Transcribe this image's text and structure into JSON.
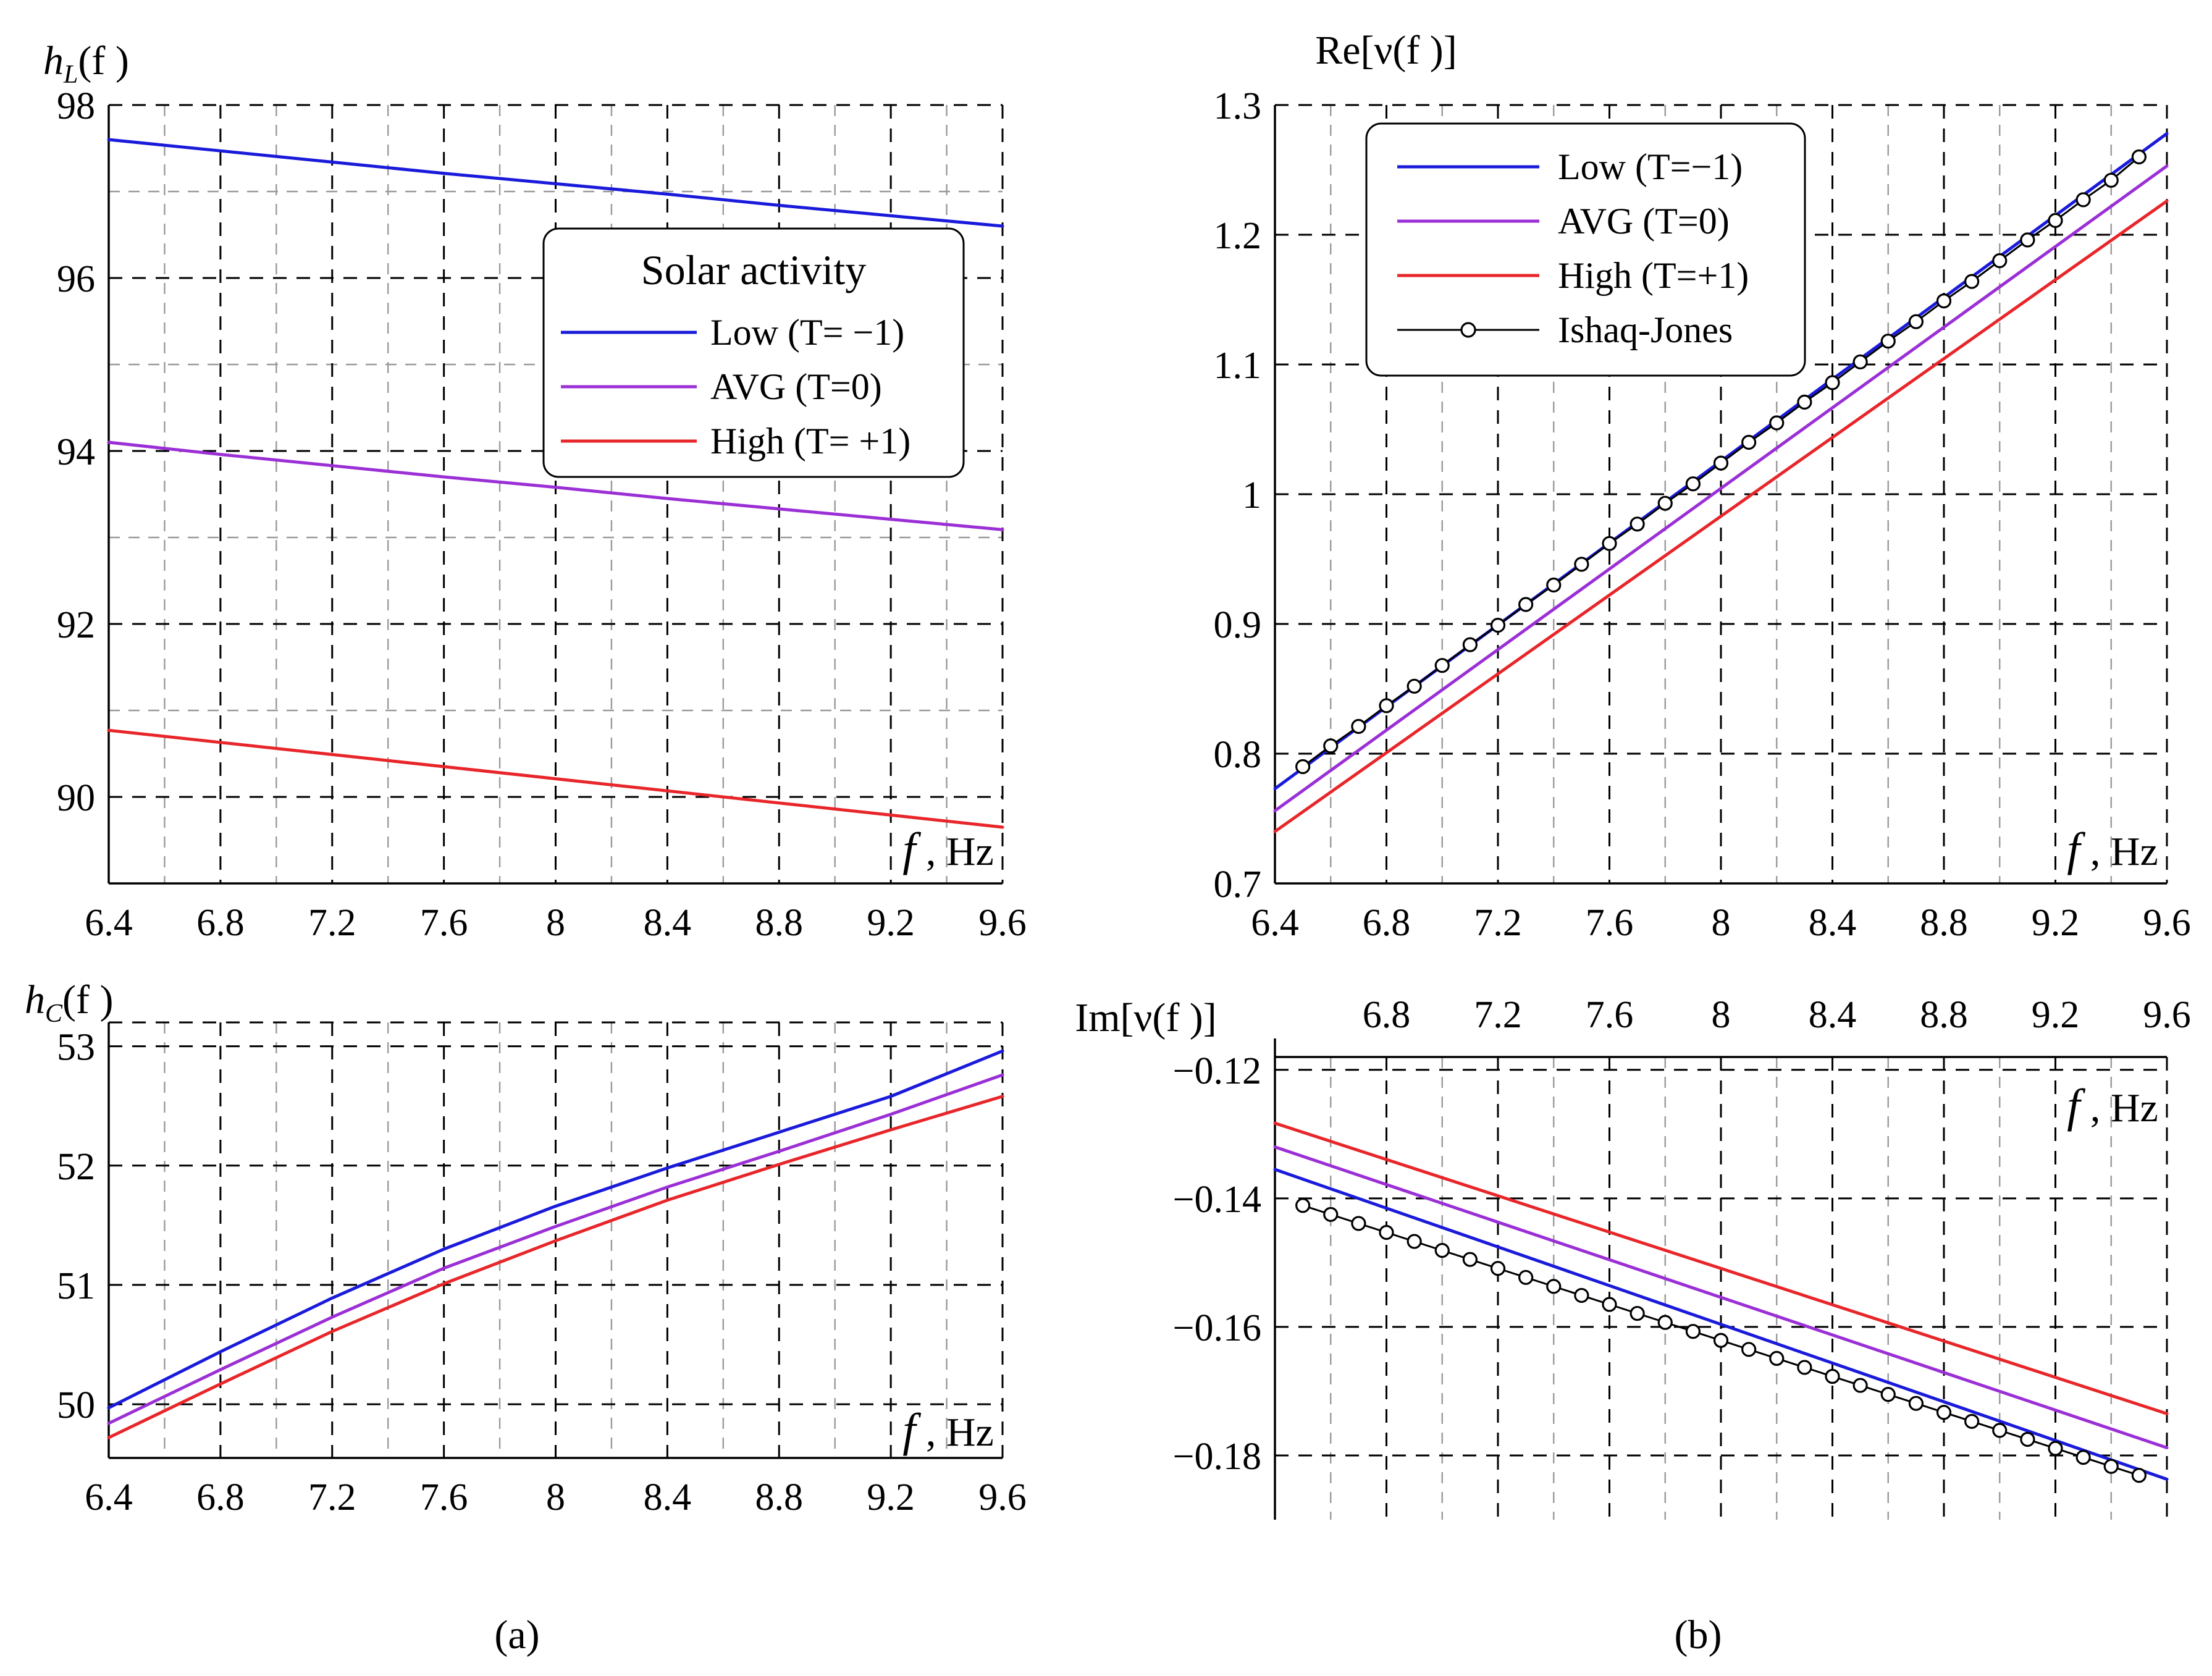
{
  "colors": {
    "low": "#1a1adb",
    "avg": "#9b2fd6",
    "high": "#e8262a",
    "ishaq": "#000000"
  },
  "captions": {
    "a": "(a)",
    "b": "(b)"
  },
  "chart_data": [
    {
      "id": "hL",
      "type": "line",
      "title": "",
      "ylabel": {
        "main": "h",
        "sub": "L",
        "rest": "(f )"
      },
      "xlabel": {
        "f": "f",
        "unit": " , Hz"
      },
      "xlim": [
        6.4,
        9.6
      ],
      "ylim": [
        89,
        98
      ],
      "xticks": [
        6.4,
        6.8,
        7.2,
        7.6,
        8,
        8.4,
        8.8,
        9.2,
        9.6
      ],
      "xtick_labels": [
        "6.4",
        "6.8",
        "7.2",
        "7.6",
        "8",
        "8.4",
        "8.8",
        "9.2",
        "9.6"
      ],
      "yticks": [
        90,
        92,
        94,
        96,
        98
      ],
      "ytick_labels": [
        "90",
        "92",
        "94",
        "96",
        "98"
      ],
      "yticks_minor": [
        91,
        93,
        95,
        97
      ],
      "xaxis_position": "bottom",
      "legend": {
        "title": "Solar activity",
        "placement": "upper-right",
        "entries": [
          "Low (T= −1)",
          "AVG (T=0)",
          "High (T= +1)"
        ]
      },
      "x": [
        6.4,
        6.8,
        7.2,
        7.6,
        8.0,
        8.4,
        8.8,
        9.2,
        9.6
      ],
      "series": [
        {
          "name": "Low (T= −1)",
          "color_key": "low",
          "values": [
            97.6,
            97.47,
            97.34,
            97.21,
            97.09,
            96.97,
            96.84,
            96.72,
            96.6
          ]
        },
        {
          "name": "AVG (T=0)",
          "color_key": "avg",
          "values": [
            94.1,
            93.96,
            93.83,
            93.7,
            93.58,
            93.45,
            93.33,
            93.21,
            93.09
          ]
        },
        {
          "name": "High (T= +1)",
          "color_key": "high",
          "values": [
            90.77,
            90.63,
            90.49,
            90.35,
            90.21,
            90.07,
            89.93,
            89.79,
            89.65
          ]
        }
      ]
    },
    {
      "id": "hC",
      "type": "line",
      "title": "",
      "ylabel": {
        "main": "h",
        "sub": "C",
        "rest": "(f )"
      },
      "xlabel": {
        "f": "f",
        "unit": " , Hz"
      },
      "xlim": [
        6.4,
        9.6
      ],
      "ylim": [
        49.55,
        53.2
      ],
      "xticks": [
        6.4,
        6.8,
        7.2,
        7.6,
        8,
        8.4,
        8.8,
        9.2,
        9.6
      ],
      "xtick_labels": [
        "6.4",
        "6.8",
        "7.2",
        "7.6",
        "8",
        "8.4",
        "8.8",
        "9.2",
        "9.6"
      ],
      "yticks": [
        50,
        51,
        52,
        53
      ],
      "ytick_labels": [
        "50",
        "51",
        "52",
        "53"
      ],
      "yticks_minor": [],
      "xaxis_position": "bottom",
      "x": [
        6.4,
        6.8,
        7.2,
        7.6,
        8.0,
        8.4,
        8.8,
        9.2,
        9.6
      ],
      "series": [
        {
          "name": "Low (T= −1)",
          "color_key": "low",
          "values": [
            49.97,
            50.44,
            50.89,
            51.3,
            51.66,
            51.98,
            52.28,
            52.58,
            52.96
          ]
        },
        {
          "name": "AVG (T=0)",
          "color_key": "avg",
          "values": [
            49.84,
            50.29,
            50.73,
            51.14,
            51.49,
            51.82,
            52.12,
            52.43,
            52.76
          ]
        },
        {
          "name": "High (T= +1)",
          "color_key": "high",
          "values": [
            49.72,
            50.17,
            50.61,
            51.01,
            51.37,
            51.71,
            52.01,
            52.3,
            52.58
          ]
        }
      ]
    },
    {
      "id": "reNu",
      "type": "line",
      "title": "",
      "ylabel": {
        "text": "Re[ν(f )]"
      },
      "xlabel": {
        "f": "f",
        "unit": " , Hz"
      },
      "xlim": [
        6.4,
        9.6
      ],
      "ylim": [
        0.7,
        1.3
      ],
      "xticks": [
        6.4,
        6.8,
        7.2,
        7.6,
        8,
        8.4,
        8.8,
        9.2,
        9.6
      ],
      "xtick_labels": [
        "6.4",
        "6.8",
        "7.2",
        "7.6",
        "8",
        "8.4",
        "8.8",
        "9.2",
        "9.6"
      ],
      "yticks": [
        0.7,
        0.8,
        0.9,
        1.0,
        1.1,
        1.2,
        1.3
      ],
      "ytick_labels": [
        "0.7",
        "0.8",
        "0.9",
        "1",
        "1.1",
        "1.2",
        "1.3"
      ],
      "yticks_minor": [],
      "xaxis_position": "bottom",
      "legend": {
        "title": "",
        "placement": "upper-left",
        "entries": [
          "Low (T=−1)",
          "AVG (T=0)",
          "High (T=+1)",
          "Ishaq-Jones"
        ]
      },
      "x": [
        6.4,
        9.6
      ],
      "series": [
        {
          "name": "Low (T=−1)",
          "color_key": "low",
          "values": [
            0.773,
            1.278
          ]
        },
        {
          "name": "AVG (T=0)",
          "color_key": "avg",
          "values": [
            0.756,
            1.253
          ]
        },
        {
          "name": "High (T=+1)",
          "color_key": "high",
          "values": [
            0.74,
            1.226
          ]
        }
      ],
      "markers_series": {
        "name": "Ishaq-Jones",
        "color_key": "ishaq",
        "x": [
          6.5,
          6.6,
          6.7,
          6.8,
          6.9,
          7.0,
          7.1,
          7.2,
          7.3,
          7.4,
          7.5,
          7.6,
          7.7,
          7.8,
          7.9,
          8.0,
          8.1,
          8.2,
          8.3,
          8.4,
          8.5,
          8.6,
          8.7,
          8.8,
          8.9,
          9.0,
          9.1,
          9.2,
          9.3,
          9.4,
          9.5
        ],
        "values": [
          0.79,
          0.806,
          0.821,
          0.837,
          0.852,
          0.868,
          0.884,
          0.899,
          0.915,
          0.93,
          0.946,
          0.962,
          0.977,
          0.993,
          1.008,
          1.024,
          1.04,
          1.055,
          1.071,
          1.086,
          1.102,
          1.118,
          1.133,
          1.149,
          1.164,
          1.18,
          1.196,
          1.211,
          1.227,
          1.242,
          1.26
        ]
      }
    },
    {
      "id": "imNu",
      "type": "line",
      "title": "",
      "ylabel": {
        "text": "Im[ν(f )]"
      },
      "xlabel": {
        "f": "f",
        "unit": " , Hz"
      },
      "xlim": [
        6.4,
        9.6
      ],
      "ylim": [
        -0.19,
        -0.118
      ],
      "xticks": [
        6.4,
        6.8,
        7.2,
        7.6,
        8,
        8.4,
        8.8,
        9.2,
        9.6
      ],
      "xtick_labels": [
        "",
        "6.8",
        "7.2",
        "7.6",
        "8",
        "8.4",
        "8.8",
        "9.2",
        "9.6"
      ],
      "yticks": [
        -0.12,
        -0.14,
        -0.16,
        -0.18
      ],
      "ytick_labels": [
        "−0.12",
        "−0.14",
        "−0.16",
        "−0.18"
      ],
      "yticks_minor": [],
      "xaxis_position": "top",
      "x": [
        6.4,
        9.6
      ],
      "series": [
        {
          "name": "Low (T=−1)",
          "color_key": "low",
          "values": [
            -0.1355,
            -0.1837
          ]
        },
        {
          "name": "AVG (T=0)",
          "color_key": "avg",
          "values": [
            -0.132,
            -0.1788
          ]
        },
        {
          "name": "High (T=+1)",
          "color_key": "high",
          "values": [
            -0.1283,
            -0.1735
          ]
        }
      ],
      "markers_series": {
        "name": "Ishaq-Jones",
        "color_key": "ishaq",
        "x": [
          6.5,
          6.6,
          6.7,
          6.8,
          6.9,
          7.0,
          7.1,
          7.2,
          7.3,
          7.4,
          7.5,
          7.6,
          7.7,
          7.8,
          7.9,
          8.0,
          8.1,
          8.2,
          8.3,
          8.4,
          8.5,
          8.6,
          8.7,
          8.8,
          8.9,
          9.0,
          9.1,
          9.2,
          9.3,
          9.4,
          9.5
        ],
        "values": [
          -0.1411,
          -0.1425,
          -0.1439,
          -0.1453,
          -0.1467,
          -0.1481,
          -0.1495,
          -0.1509,
          -0.1523,
          -0.1537,
          -0.1551,
          -0.1565,
          -0.1579,
          -0.1593,
          -0.1607,
          -0.1621,
          -0.1635,
          -0.1649,
          -0.1663,
          -0.1677,
          -0.1691,
          -0.1705,
          -0.1719,
          -0.1733,
          -0.1747,
          -0.1761,
          -0.1775,
          -0.1789,
          -0.1803,
          -0.1817,
          -0.1831
        ]
      }
    }
  ]
}
